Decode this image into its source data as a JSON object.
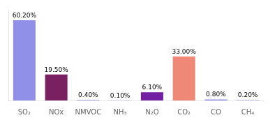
{
  "chart_data": {
    "type": "bar",
    "categories": [
      "SO₂",
      "NOx",
      "NMVOC",
      "NH₃",
      "N₂O",
      "CO₂",
      "CO",
      "CH₄"
    ],
    "values": [
      60.2,
      19.5,
      0.4,
      0.1,
      6.1,
      33.0,
      0.8,
      0.2
    ],
    "value_labels": [
      "60.20%",
      "19.50%",
      "0.40%",
      "0.10%",
      "6.10%",
      "33.00%",
      "0.80%",
      "0.20%"
    ],
    "colors": [
      "#9090e8",
      "#7a2060",
      "#9090e8",
      "#9090e8",
      "#7020a0",
      "#f08878",
      "#9090e8",
      "#9090e8"
    ],
    "ylim": [
      0,
      68
    ],
    "data_labels": true,
    "tick_labels": "x",
    "grid": false
  }
}
